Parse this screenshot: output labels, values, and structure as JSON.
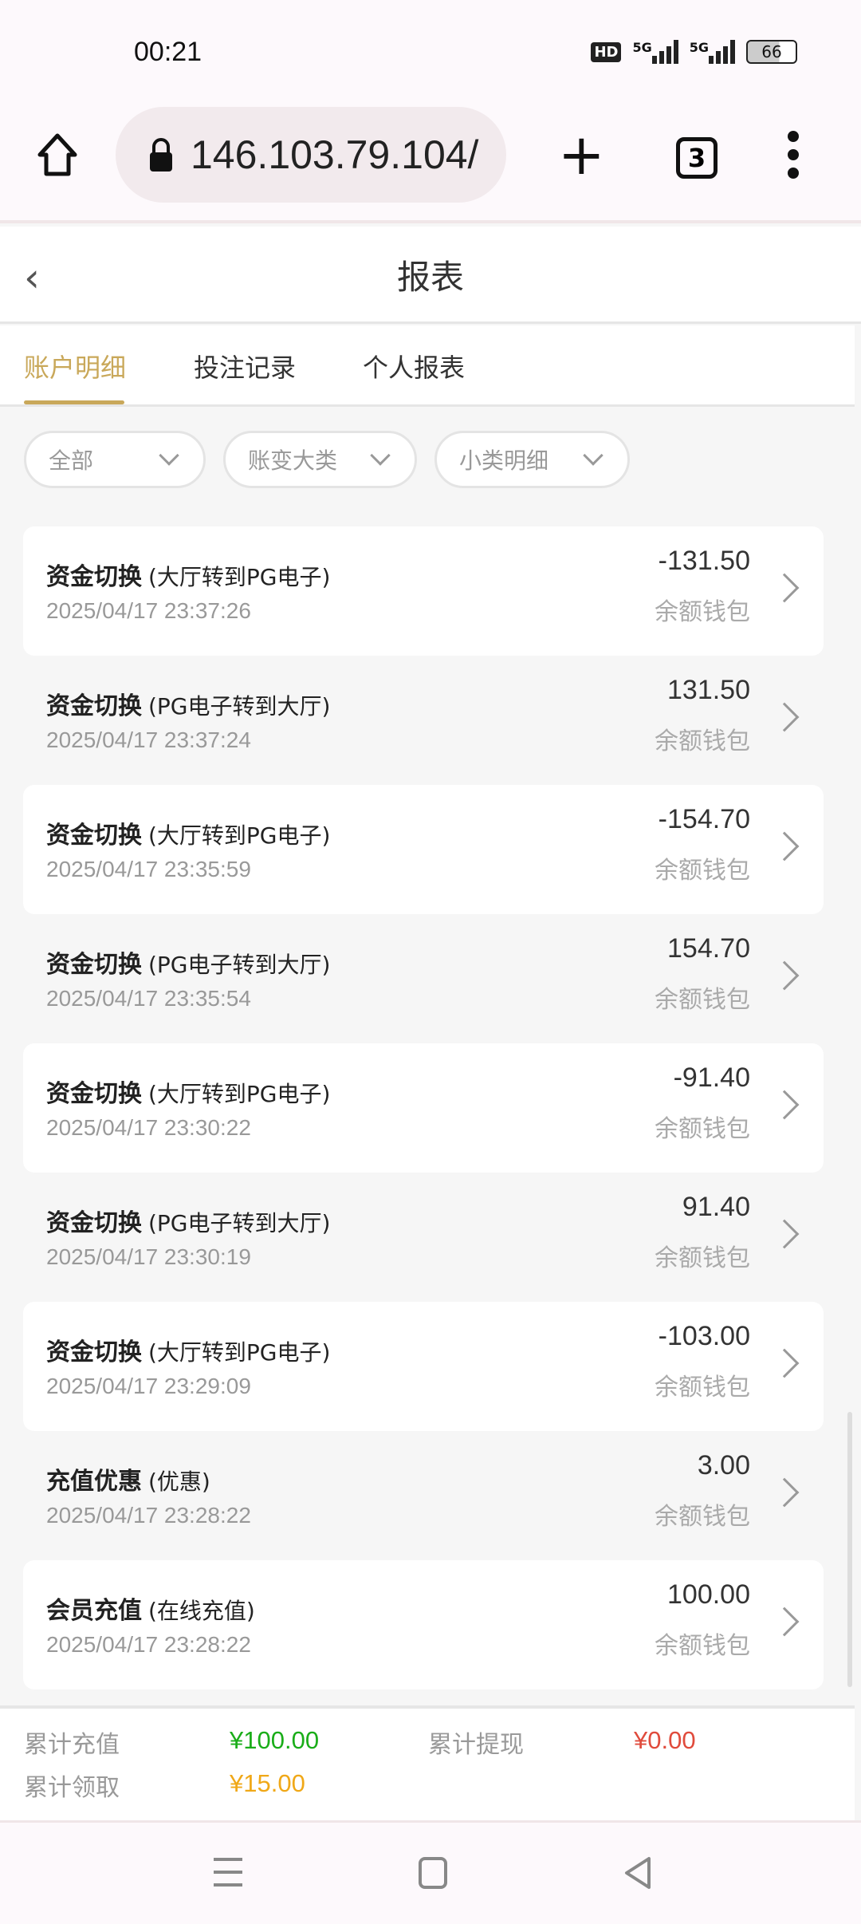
{
  "status": {
    "time": "00:21",
    "hd": "HD",
    "net1": "5G",
    "net2": "5G",
    "battery": "66"
  },
  "browser": {
    "url": "146.103.79.104/",
    "tab_count": "3"
  },
  "header": {
    "title": "报表"
  },
  "tabs": [
    {
      "label": "账户明细",
      "active": true
    },
    {
      "label": "投注记录"
    },
    {
      "label": "个人报表"
    }
  ],
  "filters": [
    "全部",
    "账变大类",
    "小类明细"
  ],
  "records": [
    {
      "type": "资金切换",
      "detail": "(大厅转到PG电子)",
      "time": "2025/04/17 23:37:26",
      "amount": "-131.50",
      "wallet": "余额钱包"
    },
    {
      "type": "资金切换",
      "detail": "(PG电子转到大厅)",
      "time": "2025/04/17 23:37:24",
      "amount": "131.50",
      "wallet": "余额钱包"
    },
    {
      "type": "资金切换",
      "detail": "(大厅转到PG电子)",
      "time": "2025/04/17 23:35:59",
      "amount": "-154.70",
      "wallet": "余额钱包"
    },
    {
      "type": "资金切换",
      "detail": "(PG电子转到大厅)",
      "time": "2025/04/17 23:35:54",
      "amount": "154.70",
      "wallet": "余额钱包"
    },
    {
      "type": "资金切换",
      "detail": "(大厅转到PG电子)",
      "time": "2025/04/17 23:30:22",
      "amount": "-91.40",
      "wallet": "余额钱包"
    },
    {
      "type": "资金切换",
      "detail": "(PG电子转到大厅)",
      "time": "2025/04/17 23:30:19",
      "amount": "91.40",
      "wallet": "余额钱包"
    },
    {
      "type": "资金切换",
      "detail": "(大厅转到PG电子)",
      "time": "2025/04/17 23:29:09",
      "amount": "-103.00",
      "wallet": "余额钱包"
    },
    {
      "type": "充值优惠",
      "detail": "(优惠)",
      "time": "2025/04/17 23:28:22",
      "amount": "3.00",
      "wallet": "余额钱包"
    },
    {
      "type": "会员充值",
      "detail": "(在线充值)",
      "time": "2025/04/17 23:28:22",
      "amount": "100.00",
      "wallet": "余额钱包"
    }
  ],
  "summary": {
    "recharge_label": "累计充值",
    "recharge_value": "¥100.00",
    "withdraw_label": "累计提现",
    "withdraw_value": "¥0.00",
    "claim_label": "累计领取",
    "claim_value": "¥15.00"
  },
  "colors": {
    "accent": "#c9a85a",
    "green": "#1aad19",
    "red": "#e04b3c",
    "orange": "#f0a818"
  }
}
